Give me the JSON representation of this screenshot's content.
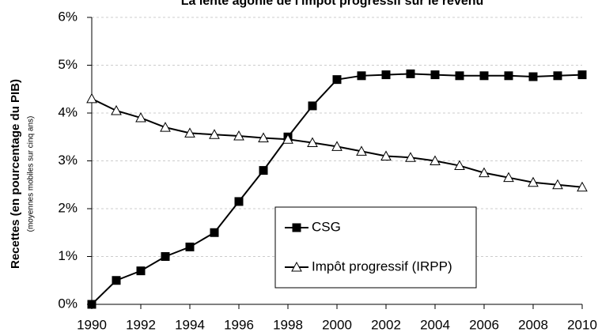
{
  "chart_data": {
    "type": "line",
    "title": "La lente agonie de l'impôt progressif sur le revenu",
    "y_label": "Recettes (en pourcentage du PIB)",
    "y_sublabel": "(moyennes mobiles sur cinq ans)",
    "x": [
      1990,
      1991,
      1992,
      1993,
      1994,
      1995,
      1996,
      1997,
      1998,
      1999,
      2000,
      2001,
      2002,
      2003,
      2004,
      2005,
      2006,
      2007,
      2008,
      2009,
      2010
    ],
    "series": [
      {
        "name": "CSG",
        "color": "#000000",
        "marker": "square",
        "values": [
          0,
          0.5,
          0.7,
          1.0,
          1.2,
          1.5,
          2.15,
          2.8,
          3.5,
          4.15,
          4.7,
          4.78,
          4.8,
          4.82,
          4.8,
          4.78,
          4.78,
          4.78,
          4.76,
          4.78,
          4.8
        ]
      },
      {
        "name": "Impôt progressif (IRPP)",
        "color": "#000000",
        "marker": "triangle",
        "values": [
          4.3,
          4.05,
          3.9,
          3.7,
          3.58,
          3.55,
          3.52,
          3.48,
          3.45,
          3.38,
          3.3,
          3.2,
          3.1,
          3.07,
          3.0,
          2.9,
          2.75,
          2.65,
          2.55,
          2.5,
          2.45
        ]
      }
    ],
    "xlim": [
      1990,
      2010
    ],
    "xticks": [
      1990,
      1992,
      1994,
      1996,
      1998,
      2000,
      2002,
      2004,
      2006,
      2008,
      2010
    ],
    "ylim": [
      0,
      6
    ],
    "yticks": [
      {
        "value": 0,
        "label": "0%"
      },
      {
        "value": 1,
        "label": "1%"
      },
      {
        "value": 2,
        "label": "2%"
      },
      {
        "value": 3,
        "label": "3%"
      },
      {
        "value": 4,
        "label": "4%"
      },
      {
        "value": 5,
        "label": "5%"
      },
      {
        "value": 6,
        "label": "6%"
      }
    ],
    "grid": true,
    "legend": "center"
  }
}
